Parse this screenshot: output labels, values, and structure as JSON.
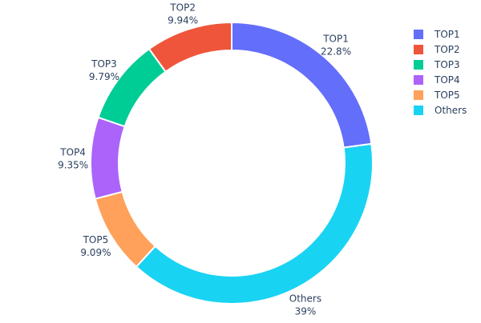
{
  "chart_data": {
    "type": "pie",
    "hole": true,
    "direction": "clockwise",
    "labels": [
      "TOP1",
      "Others",
      "TOP5",
      "TOP4",
      "TOP3",
      "TOP2"
    ],
    "values": [
      22.8,
      39,
      9.09,
      9.35,
      9.79,
      9.94
    ],
    "value_labels": [
      "22.8%",
      "39%",
      "9.09%",
      "9.35%",
      "9.79%",
      "9.94%"
    ],
    "colors": {
      "TOP1": "#636efa",
      "TOP2": "#EF553B",
      "TOP3": "#00cc96",
      "TOP4": "#ab63fa",
      "TOP5": "#FFA15A",
      "Others": "#19d3f3"
    },
    "legend": {
      "placement": "top-right",
      "entries": [
        "TOP1",
        "TOP2",
        "TOP3",
        "TOP4",
        "TOP5",
        "Others"
      ]
    }
  }
}
